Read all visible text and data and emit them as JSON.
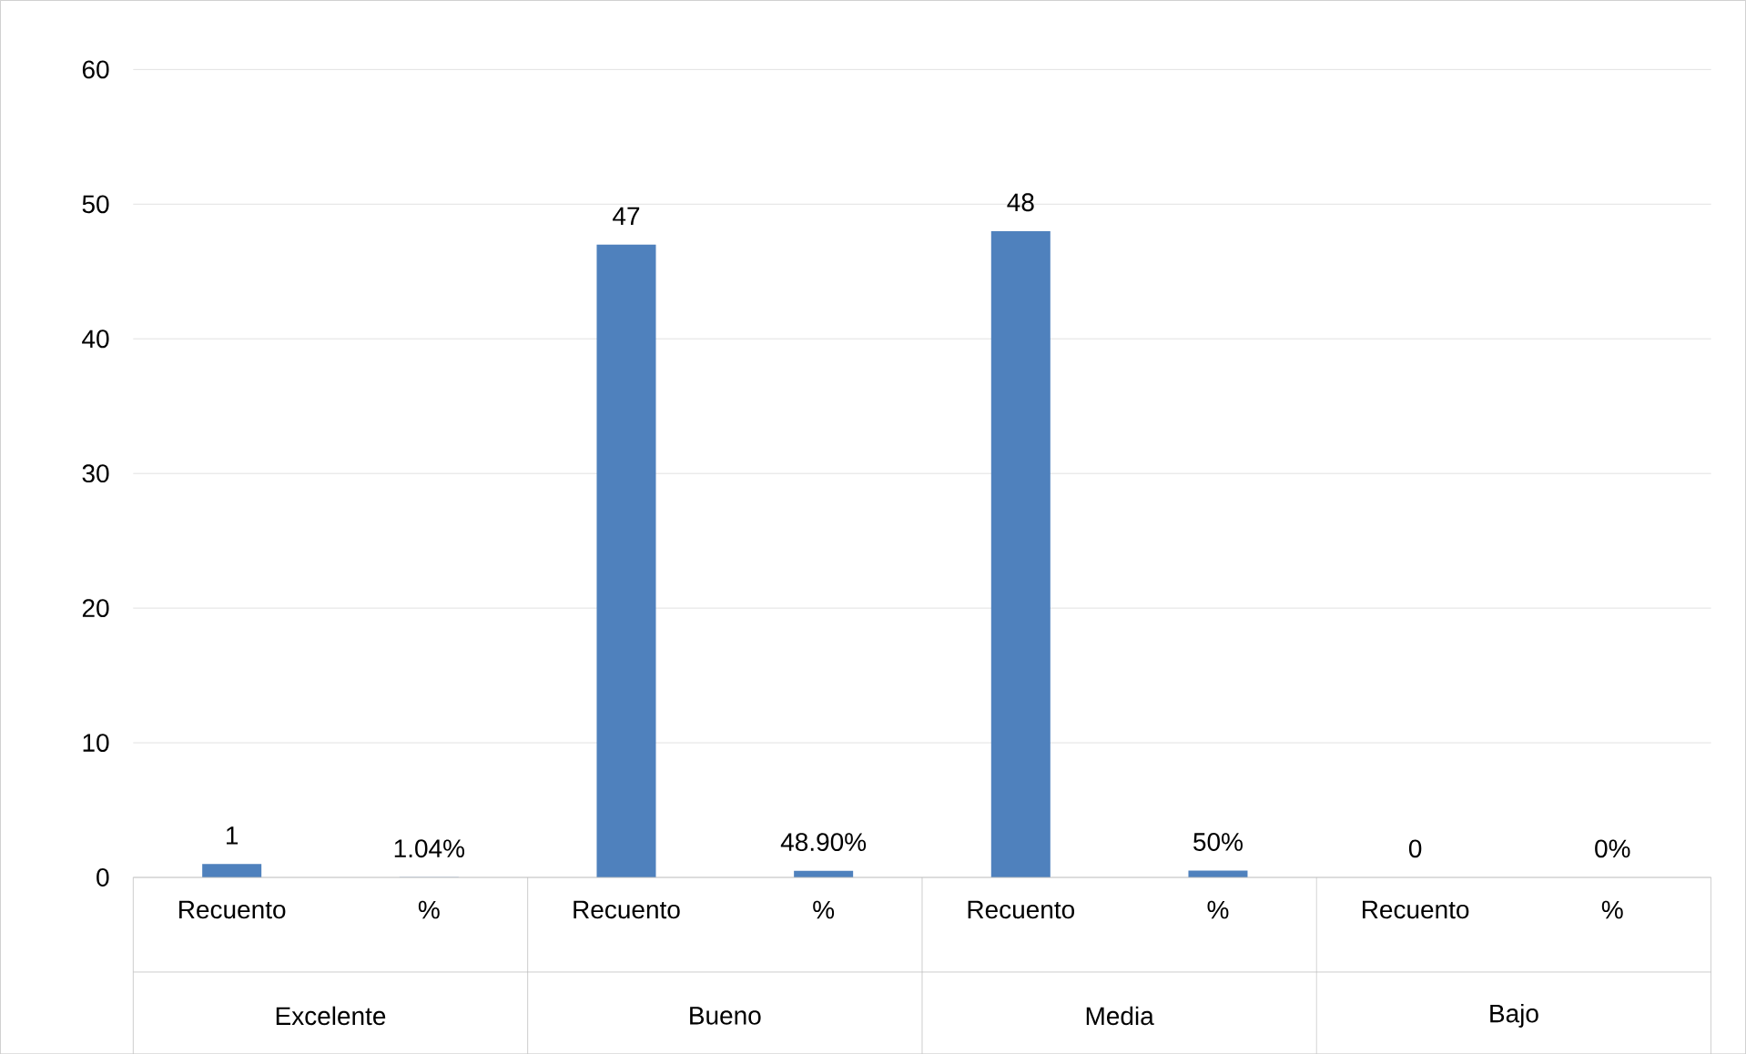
{
  "chart_data": {
    "type": "bar",
    "categories": [
      "Recuento",
      "%",
      "Recuento",
      "%",
      "Recuento",
      "%",
      "Recuento",
      "%"
    ],
    "values": [
      1,
      0.0104,
      47,
      0.489,
      48,
      0.5,
      0,
      0
    ],
    "value_labels": [
      "1",
      "1.04%",
      "47",
      "48.90%",
      "48",
      "50%",
      "0",
      "0%"
    ],
    "color": "#4f81bd",
    "ylim": [
      0,
      60
    ],
    "yticks": [
      0,
      10,
      20,
      30,
      40,
      50,
      60
    ],
    "grid": "y",
    "annotations": [
      "Excelente",
      "Bueno",
      "Media",
      "Bajo"
    ]
  }
}
